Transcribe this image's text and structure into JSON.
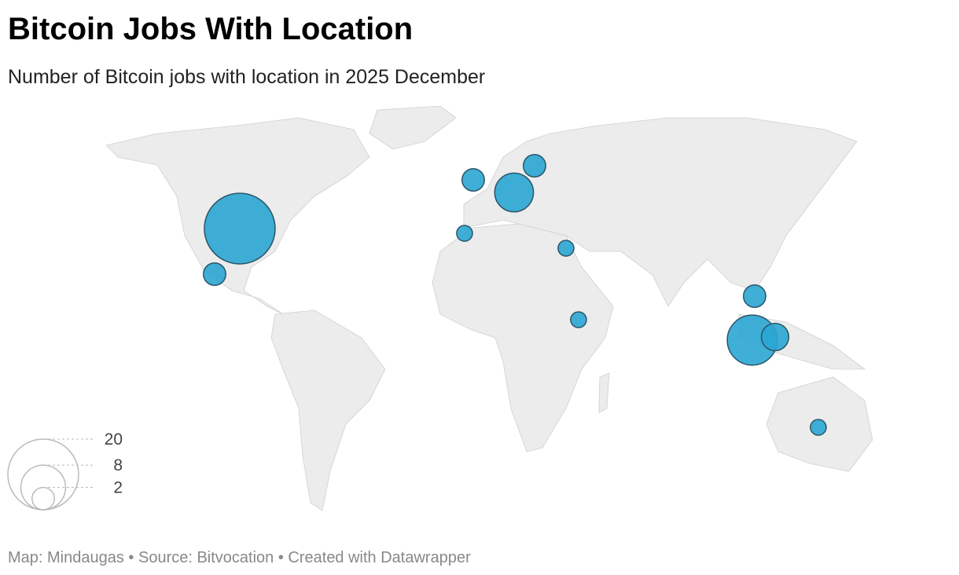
{
  "title": "Bitcoin Jobs With Location",
  "subtitle": "Number of Bitcoin jobs with location in 2025 December",
  "footer": "Map: Mindaugas • Source: Bitvocation • Created with Datawrapper",
  "chart_data": {
    "type": "bubble-map",
    "color": "#2aa6d3",
    "values": [
      20,
      2,
      2,
      6,
      2,
      1,
      1,
      1,
      2,
      10,
      3,
      1
    ],
    "size_legend": [
      20,
      8,
      2
    ]
  }
}
